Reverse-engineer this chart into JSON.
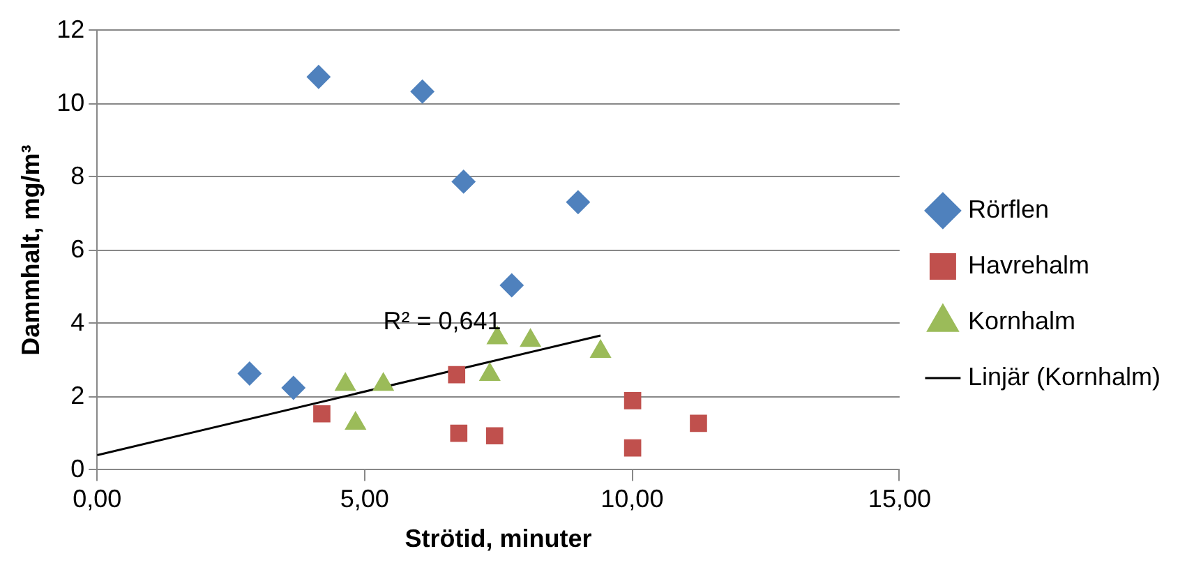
{
  "chart_data": {
    "type": "scatter",
    "xlabel": "Strötid, minuter",
    "ylabel": "Dammhalt, mg/m³",
    "xlim": [
      0,
      15
    ],
    "xticks": [
      {
        "value": 0,
        "label": "0,00"
      },
      {
        "value": 5,
        "label": "5,00"
      },
      {
        "value": 10,
        "label": "10,00"
      },
      {
        "value": 15,
        "label": "15,00"
      }
    ],
    "ylim": [
      0,
      12
    ],
    "yticks": [
      0,
      2,
      4,
      6,
      8,
      10,
      12
    ],
    "grid": "y",
    "legend": "right",
    "annotations": [
      "R² = 0,641"
    ],
    "series": [
      {
        "name": "Rörflen",
        "color": "#4f81bd",
        "marker": "diamond",
        "x": [
          2.85,
          3.67,
          4.14,
          6.08,
          6.85,
          8.99,
          7.75
        ],
        "values": [
          2.63,
          2.24,
          10.73,
          10.33,
          7.87,
          7.31,
          5.04
        ]
      },
      {
        "name": "Havrehalm",
        "color": "#c0504d",
        "marker": "square",
        "x": [
          4.2,
          6.72,
          6.76,
          7.43,
          10.01,
          10.01,
          11.24
        ],
        "values": [
          1.53,
          2.6,
          1.0,
          0.93,
          1.89,
          0.6,
          1.27
        ]
      },
      {
        "name": "Kornhalm",
        "color": "#9bbb59",
        "marker": "triangle",
        "x": [
          4.64,
          5.35,
          4.83,
          7.34,
          7.48,
          8.1,
          9.41
        ],
        "values": [
          2.33,
          2.33,
          1.27,
          2.6,
          3.6,
          3.53,
          3.23
        ]
      },
      {
        "name": "Linjär (Kornhalm)",
        "type": "line",
        "color": "#000000",
        "marker": "none",
        "x": [
          0,
          9.41
        ],
        "values": [
          0.4,
          3.67
        ]
      }
    ]
  }
}
